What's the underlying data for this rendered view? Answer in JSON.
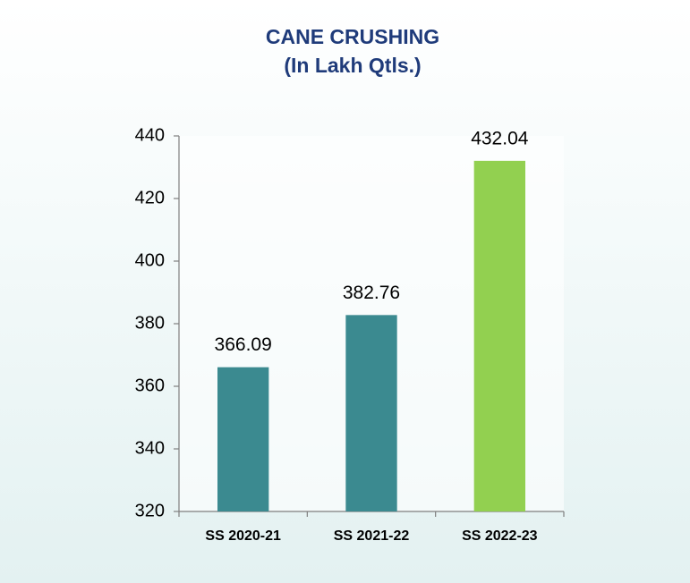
{
  "chart_data": {
    "type": "bar",
    "title": "CANE CRUSHING",
    "subtitle": "(In Lakh Qtls.)",
    "categories": [
      "SS 2020-21",
      "SS 2021-22",
      "SS 2022-23"
    ],
    "values": [
      366.09,
      382.76,
      432.04
    ],
    "colors": [
      "#3b8a90",
      "#3b8a90",
      "#92d050"
    ],
    "ylim": [
      320,
      440
    ],
    "yticks": [
      320,
      340,
      360,
      380,
      400,
      420,
      440
    ],
    "grid": false
  }
}
